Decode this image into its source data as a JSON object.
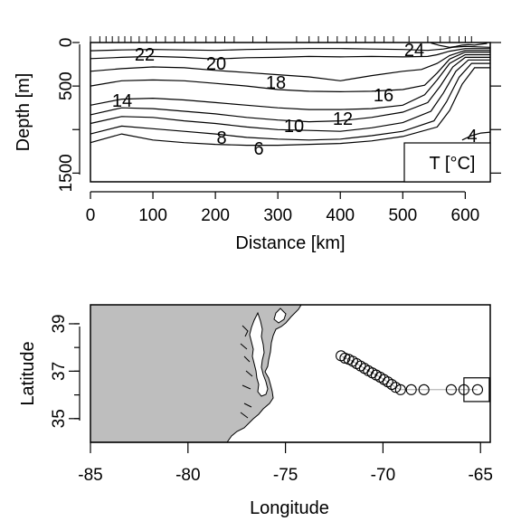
{
  "chart_data": [
    {
      "type": "contour",
      "xlabel": "Distance [km]",
      "ylabel": "Depth [m]",
      "xlim": [
        0,
        640
      ],
      "ylim": [
        1600,
        0
      ],
      "x_ticks": [
        0,
        100,
        200,
        300,
        400,
        500,
        600
      ],
      "y_ticks": [
        0,
        500,
        1000,
        1500
      ],
      "y_tick_labels": [
        "0",
        "500",
        "",
        "1500"
      ],
      "legend_label": "T [°C]",
      "station_distances_km": [
        0,
        15,
        25,
        35,
        45,
        55,
        65,
        78,
        90,
        105,
        120,
        135,
        150,
        168,
        185,
        200,
        215,
        230,
        260,
        282,
        330,
        350,
        365,
        380,
        395,
        410,
        425,
        440,
        455,
        470,
        485,
        510,
        540,
        560,
        575,
        590,
        600,
        610
      ],
      "contour_labels": [
        "22",
        "20",
        "18",
        "16",
        "14",
        "12",
        "10",
        "8",
        "6",
        "4",
        "24"
      ],
      "contours": [
        {
          "level": 24,
          "x": [
            545,
            560,
            575,
            585,
            595,
            605,
            615,
            625,
            635
          ],
          "y": [
            5,
            35,
            55,
            45,
            30,
            25,
            30,
            20,
            10
          ]
        },
        {
          "level": 22,
          "x": [
            0,
            50,
            100,
            150,
            200,
            250,
            300,
            350,
            400,
            450,
            500,
            540,
            565,
            580,
            600,
            620,
            640
          ],
          "y": [
            95,
            85,
            80,
            85,
            90,
            80,
            75,
            70,
            70,
            75,
            80,
            90,
            75,
            55,
            45,
            50,
            55
          ]
        },
        {
          "level": 20,
          "x": [
            0,
            50,
            100,
            150,
            200,
            250,
            300,
            350,
            400,
            450,
            500,
            540,
            555,
            575,
            600,
            640
          ],
          "y": [
            185,
            170,
            160,
            170,
            190,
            175,
            170,
            160,
            165,
            160,
            165,
            160,
            140,
            100,
            70,
            70
          ]
        },
        {
          "level": 18,
          "x": [
            0,
            50,
            100,
            150,
            200,
            250,
            300,
            350,
            400,
            450,
            500,
            530,
            555,
            575,
            600,
            640
          ],
          "y": [
            330,
            300,
            280,
            290,
            320,
            345,
            370,
            395,
            440,
            380,
            330,
            310,
            240,
            150,
            90,
            90
          ]
        },
        {
          "level": 16,
          "x": [
            0,
            50,
            100,
            150,
            200,
            250,
            300,
            350,
            400,
            450,
            500,
            535,
            555,
            575,
            600,
            640
          ],
          "y": [
            500,
            440,
            430,
            440,
            470,
            500,
            540,
            560,
            565,
            560,
            540,
            490,
            350,
            190,
            110,
            110
          ]
        },
        {
          "level": 14,
          "x": [
            0,
            50,
            100,
            150,
            200,
            250,
            300,
            350,
            400,
            450,
            500,
            535,
            555,
            575,
            600,
            640
          ],
          "y": [
            720,
            650,
            640,
            660,
            690,
            720,
            750,
            770,
            770,
            760,
            720,
            600,
            430,
            240,
            140,
            140
          ]
        },
        {
          "level": 12,
          "x": [
            0,
            50,
            100,
            150,
            200,
            250,
            300,
            350,
            400,
            450,
            500,
            540,
            560,
            580,
            600,
            640
          ],
          "y": [
            830,
            750,
            760,
            790,
            820,
            860,
            890,
            910,
            900,
            860,
            800,
            690,
            500,
            280,
            170,
            170
          ]
        },
        {
          "level": 10,
          "x": [
            0,
            50,
            100,
            150,
            200,
            250,
            300,
            350,
            400,
            450,
            500,
            545,
            565,
            585,
            605,
            640
          ],
          "y": [
            930,
            850,
            860,
            900,
            930,
            970,
            1000,
            1010,
            1020,
            980,
            920,
            790,
            580,
            330,
            200,
            200
          ]
        },
        {
          "level": 8,
          "x": [
            0,
            50,
            100,
            150,
            200,
            250,
            300,
            350,
            400,
            450,
            500,
            550,
            570,
            590,
            610,
            640
          ],
          "y": [
            1050,
            960,
            990,
            1020,
            1050,
            1090,
            1110,
            1120,
            1110,
            1070,
            1020,
            900,
            680,
            400,
            240,
            240
          ]
        },
        {
          "level": 6,
          "x": [
            0,
            50,
            100,
            150,
            200,
            250,
            300,
            350,
            400,
            450,
            500,
            555,
            575,
            595,
            615,
            640
          ],
          "y": [
            1150,
            1050,
            1120,
            1150,
            1170,
            1180,
            1180,
            1170,
            1160,
            1130,
            1080,
            970,
            780,
            480,
            290,
            290
          ]
        },
        {
          "level": 4,
          "x": [
            595,
            610,
            625,
            640
          ],
          "y": [
            1120,
            1070,
            1040,
            1030
          ]
        }
      ]
    },
    {
      "type": "scatter",
      "xlabel": "Longitude",
      "ylabel": "Latitude",
      "xlim": [
        -85,
        -64.5
      ],
      "ylim": [
        34,
        39.8
      ],
      "x_ticks": [
        -85,
        -80,
        -75,
        -70,
        -65
      ],
      "y_ticks": [
        35,
        37,
        39
      ],
      "land_color": "#bebebe",
      "points": [
        {
          "lon": -72.15,
          "lat": 37.65
        },
        {
          "lon": -71.95,
          "lat": 37.55
        },
        {
          "lon": -71.75,
          "lat": 37.5
        },
        {
          "lon": -71.55,
          "lat": 37.42
        },
        {
          "lon": -71.35,
          "lat": 37.32
        },
        {
          "lon": -71.15,
          "lat": 37.22
        },
        {
          "lon": -70.95,
          "lat": 37.12
        },
        {
          "lon": -70.75,
          "lat": 37.02
        },
        {
          "lon": -70.55,
          "lat": 36.93
        },
        {
          "lon": -70.35,
          "lat": 36.84
        },
        {
          "lon": -70.15,
          "lat": 36.75
        },
        {
          "lon": -69.95,
          "lat": 36.65
        },
        {
          "lon": -69.75,
          "lat": 36.55
        },
        {
          "lon": -69.55,
          "lat": 36.44
        },
        {
          "lon": -69.35,
          "lat": 36.32
        },
        {
          "lon": -69.1,
          "lat": 36.22
        },
        {
          "lon": -68.55,
          "lat": 36.22
        },
        {
          "lon": -67.9,
          "lat": 36.22
        },
        {
          "lon": -66.5,
          "lat": 36.22
        },
        {
          "lon": -65.85,
          "lat": 36.22
        },
        {
          "lon": -65.15,
          "lat": 36.22
        }
      ],
      "highlight_box": {
        "lon_min": -65.85,
        "lon_max": -64.55,
        "lat_min": 35.72,
        "lat_max": 36.72
      }
    }
  ]
}
